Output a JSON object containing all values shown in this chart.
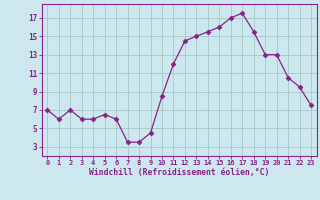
{
  "x": [
    0,
    1,
    2,
    3,
    4,
    5,
    6,
    7,
    8,
    9,
    10,
    11,
    12,
    13,
    14,
    15,
    16,
    17,
    18,
    19,
    20,
    21,
    22,
    23
  ],
  "y": [
    7,
    6,
    7,
    6,
    6,
    6.5,
    6,
    3.5,
    3.5,
    4.5,
    8.5,
    12,
    14.5,
    15,
    15.5,
    16,
    17,
    17.5,
    15.5,
    13,
    13,
    10.5,
    9.5,
    7.5
  ],
  "line_color": "#882288",
  "marker": "D",
  "marker_size": 2.5,
  "bg_color": "#cce8ee",
  "grid_color": "#aacccc",
  "xlabel": "Windchill (Refroidissement éolien,°C)",
  "xlabel_color": "#882288",
  "tick_color": "#882288",
  "ytick_labels": [
    "3",
    "5",
    "7",
    "9",
    "11",
    "13",
    "15",
    "17"
  ],
  "ytick_vals": [
    3,
    5,
    7,
    9,
    11,
    13,
    15,
    17
  ],
  "xlim": [
    -0.5,
    23.5
  ],
  "ylim": [
    2.0,
    18.5
  ]
}
